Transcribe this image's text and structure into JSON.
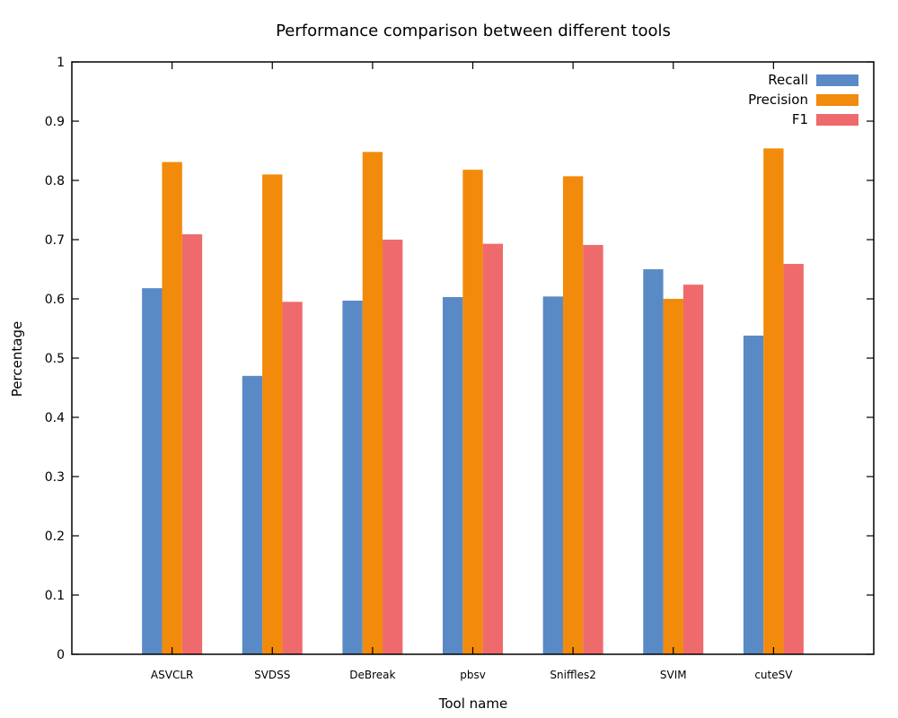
{
  "chart_data": {
    "type": "bar",
    "title": "Performance comparison between different tools",
    "xlabel": "Tool name",
    "ylabel": "Percentage",
    "ylim": [
      0,
      1
    ],
    "yticks": [
      "0",
      "0.1",
      "0.2",
      "0.3",
      "0.4",
      "0.5",
      "0.6",
      "0.7",
      "0.8",
      "0.9",
      "1"
    ],
    "categories": [
      "ASVCLR",
      "SVDSS",
      "DeBreak",
      "pbsv",
      "Sniffles2",
      "SVIM",
      "cuteSV"
    ],
    "series": [
      {
        "name": "Recall",
        "color": "#5a8ac6",
        "values": [
          0.618,
          0.47,
          0.597,
          0.603,
          0.604,
          0.65,
          0.538
        ]
      },
      {
        "name": "Precision",
        "color": "#f28a0c",
        "values": [
          0.831,
          0.81,
          0.848,
          0.818,
          0.807,
          0.6,
          0.854
        ]
      },
      {
        "name": "F1",
        "color": "#ef6a6c",
        "values": [
          0.709,
          0.595,
          0.7,
          0.693,
          0.691,
          0.624,
          0.659
        ]
      }
    ],
    "legend_position": "top-right",
    "grid": false
  }
}
